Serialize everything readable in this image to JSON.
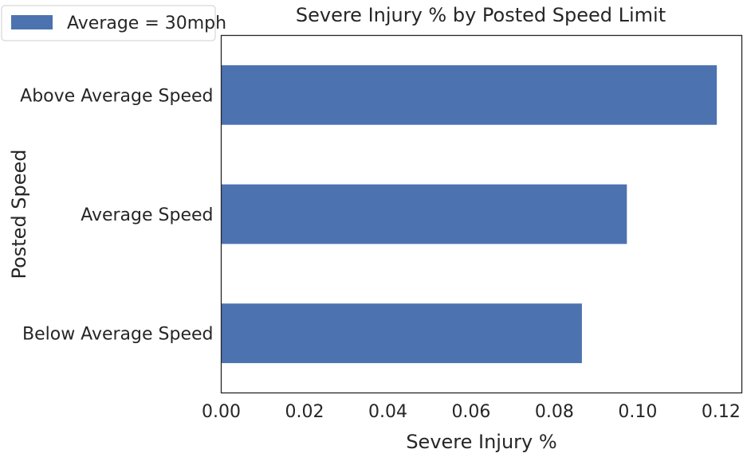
{
  "chart_data": {
    "type": "bar",
    "orientation": "horizontal",
    "title": "Severe Injury % by Posted Speed Limit",
    "xlabel": "Severe Injury %",
    "ylabel": "Posted Speed",
    "categories": [
      "Below Average Speed",
      "Average Speed",
      "Above Average Speed"
    ],
    "series": [
      {
        "name": "Average = 30mph",
        "values": [
          0.0866,
          0.0974,
          0.119
        ],
        "color": "#4c72b0"
      }
    ],
    "xlim": [
      0,
      0.125
    ],
    "xticks": [
      "0.00",
      "0.02",
      "0.04",
      "0.06",
      "0.08",
      "0.10",
      "0.12"
    ],
    "grid": false,
    "legend_position": "top-left"
  }
}
